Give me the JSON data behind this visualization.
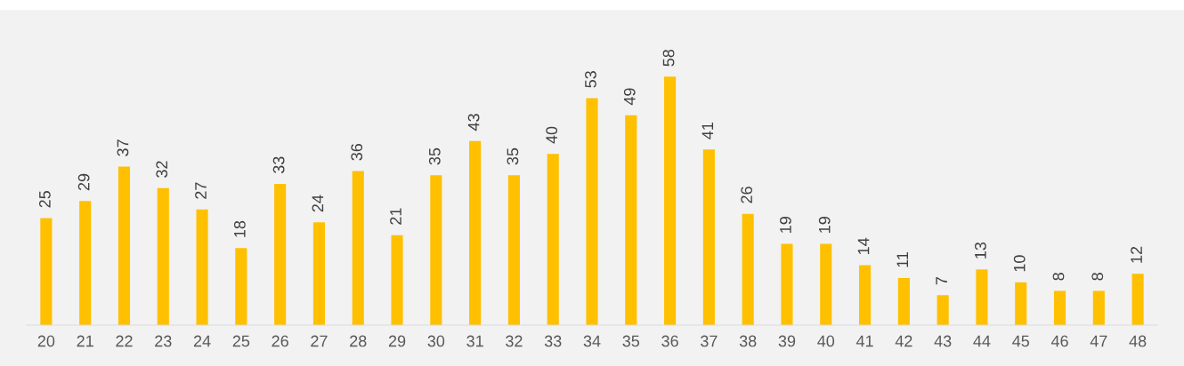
{
  "chart_data": {
    "type": "bar",
    "categories": [
      "20",
      "21",
      "22",
      "23",
      "24",
      "25",
      "26",
      "27",
      "28",
      "29",
      "30",
      "31",
      "32",
      "33",
      "34",
      "35",
      "36",
      "37",
      "38",
      "39",
      "40",
      "41",
      "42",
      "43",
      "44",
      "45",
      "46",
      "47",
      "48"
    ],
    "values": [
      25,
      29,
      37,
      32,
      27,
      18,
      33,
      24,
      36,
      21,
      35,
      43,
      35,
      40,
      53,
      49,
      58,
      41,
      26,
      19,
      19,
      14,
      11,
      7,
      13,
      10,
      8,
      8,
      12
    ],
    "color": "#ffc000",
    "data_labels": true,
    "grid": false,
    "tick_labels": "x"
  }
}
